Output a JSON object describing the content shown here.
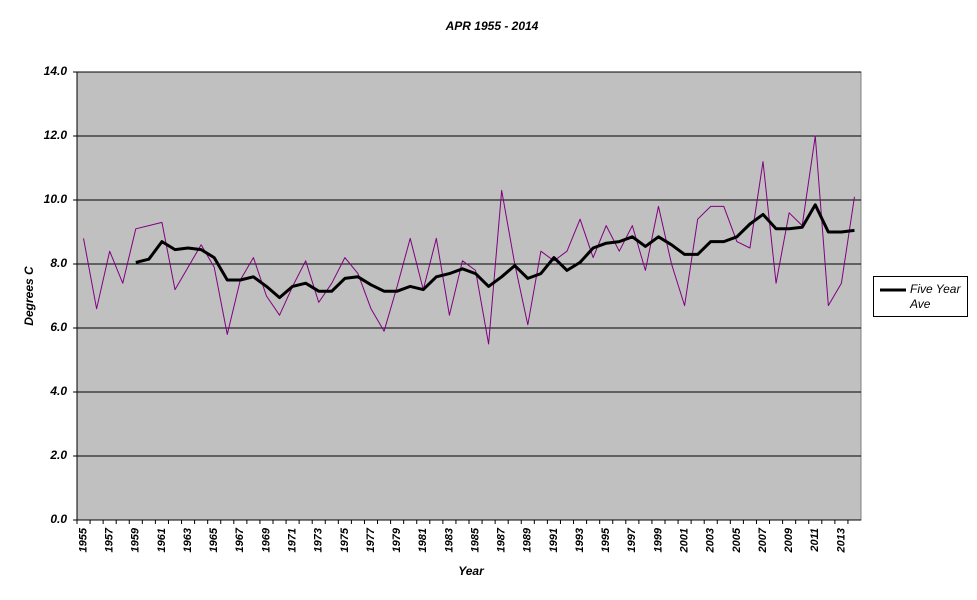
{
  "chart_data": {
    "type": "line",
    "title": "APR 1955 - 2014",
    "xlabel": "Year",
    "ylabel": "Degrees C",
    "categories": [
      "1955",
      null,
      "1957",
      null,
      "1959",
      null,
      "1961",
      null,
      "1963",
      null,
      "1965",
      null,
      "1967",
      null,
      "1969",
      null,
      "1971",
      null,
      "1973",
      null,
      "1975",
      null,
      "1977",
      null,
      "1979",
      null,
      "1981",
      null,
      "1983",
      null,
      "1985",
      null,
      "1987",
      null,
      "1989",
      null,
      "1991",
      null,
      "1993",
      null,
      "1995",
      null,
      "1997",
      null,
      "1999",
      null,
      "2001",
      null,
      "2003",
      null,
      "2005",
      null,
      "2007",
      null,
      "2009",
      null,
      "2011",
      null,
      "2013",
      null
    ],
    "series": [
      {
        "color": "#800080",
        "values": [
          8.8,
          6.6,
          8.4,
          7.4,
          9.1,
          9.2,
          9.3,
          7.2,
          7.9,
          8.6,
          7.9,
          5.8,
          7.5,
          8.2,
          7.0,
          6.4,
          7.3,
          8.1,
          6.8,
          7.4,
          8.2,
          7.7,
          6.6,
          5.9,
          7.3,
          8.8,
          7.2,
          8.8,
          6.4,
          8.1,
          7.8,
          5.5,
          10.3,
          8.0,
          6.1,
          8.4,
          8.1,
          8.4,
          9.4,
          8.2,
          9.2,
          8.4,
          9.2,
          7.8,
          9.8,
          8.0,
          6.7,
          9.4,
          9.8,
          9.8,
          8.7,
          8.5,
          11.2,
          7.4,
          9.6,
          9.2,
          12.0,
          6.7,
          7.4,
          10.1
        ]
      },
      {
        "name": "Five Year Ave",
        "color": "#000000",
        "values": [
          null,
          null,
          null,
          null,
          8.05,
          8.15,
          8.7,
          8.45,
          8.5,
          8.45,
          8.2,
          7.5,
          7.5,
          7.6,
          7.3,
          6.95,
          7.3,
          7.4,
          7.15,
          7.15,
          7.55,
          7.6,
          7.35,
          7.15,
          7.15,
          7.3,
          7.2,
          7.6,
          7.7,
          7.85,
          7.7,
          7.3,
          7.6,
          7.95,
          7.55,
          7.7,
          8.2,
          7.8,
          8.05,
          8.5,
          8.65,
          8.7,
          8.85,
          8.55,
          8.85,
          8.6,
          8.3,
          8.3,
          8.7,
          8.7,
          8.85,
          9.25,
          9.55,
          9.1,
          9.1,
          9.15,
          9.85,
          9.0,
          9.0,
          9.05
        ]
      }
    ],
    "ylim": [
      0,
      14
    ],
    "yticks": [
      {
        "value": 0,
        "label": "0.0"
      },
      {
        "value": 2,
        "label": "2.0"
      },
      {
        "value": 4,
        "label": "4.0"
      },
      {
        "value": 6,
        "label": "6.0"
      },
      {
        "value": 8,
        "label": "8.0"
      },
      {
        "value": 10,
        "label": "10.0"
      },
      {
        "value": 12,
        "label": "12.0"
      },
      {
        "value": 14,
        "label": "14.0"
      }
    ],
    "grid": true,
    "legend": "right",
    "plot_background": "#c0c0c0"
  }
}
